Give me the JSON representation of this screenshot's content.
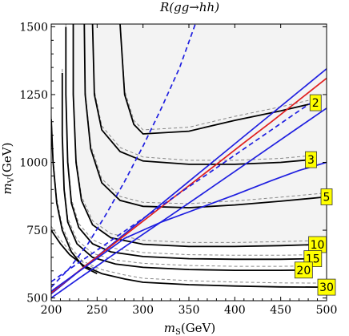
{
  "chart_data": {
    "type": "line",
    "title": "R(gg→hh)",
    "xlabel": "m_S(GeV)",
    "ylabel": "m_V(GeV)",
    "xlim": [
      200,
      500
    ],
    "ylim": [
      490,
      1510
    ],
    "xticks": [
      "200",
      "250",
      "300",
      "350",
      "400",
      "450",
      "500"
    ],
    "yticks": [
      "500",
      "750",
      "1000",
      "1250",
      "1500"
    ],
    "grid": false,
    "colors": {
      "contour": "#000000",
      "contour_dashed": "#888888",
      "blue": "#1f1fe0",
      "red": "#e01f1f",
      "label_bg": "#ffff00",
      "shade_light": "#f3f3f3",
      "shade_mid": "#ebebeb"
    },
    "contours": [
      {
        "label": "2",
        "points": [
          [
            275,
            1510
          ],
          [
            280,
            1250
          ],
          [
            290,
            1140
          ],
          [
            300,
            1105
          ],
          [
            350,
            1115
          ],
          [
            400,
            1155
          ],
          [
            450,
            1190
          ],
          [
            488,
            1220
          ]
        ]
      },
      {
        "label": "3",
        "points": [
          [
            245,
            1510
          ],
          [
            247,
            1250
          ],
          [
            255,
            1120
          ],
          [
            275,
            1040
          ],
          [
            300,
            1005
          ],
          [
            350,
            993
          ],
          [
            400,
            993
          ],
          [
            450,
            1000
          ],
          [
            483,
            1010
          ]
        ]
      },
      {
        "label": "5",
        "points": [
          [
            236,
            1510
          ],
          [
            237,
            1250
          ],
          [
            243,
            1050
          ],
          [
            255,
            925
          ],
          [
            275,
            860
          ],
          [
            300,
            838
          ],
          [
            350,
            833
          ],
          [
            400,
            843
          ],
          [
            450,
            857
          ],
          [
            500,
            873
          ]
        ]
      },
      {
        "label": "10",
        "points": [
          [
            224,
            1510
          ],
          [
            224,
            1250
          ],
          [
            227,
            1000
          ],
          [
            233,
            860
          ],
          [
            245,
            770
          ],
          [
            265,
            722
          ],
          [
            300,
            698
          ],
          [
            350,
            690
          ],
          [
            400,
            690
          ],
          [
            450,
            693
          ],
          [
            490,
            697
          ]
        ]
      },
      {
        "label": "15",
        "points": [
          [
            216,
            1500
          ],
          [
            216,
            1250
          ],
          [
            218,
            1000
          ],
          [
            222,
            850
          ],
          [
            230,
            760
          ],
          [
            245,
            700
          ],
          [
            265,
            670
          ],
          [
            300,
            653
          ],
          [
            350,
            645
          ],
          [
            400,
            643
          ],
          [
            450,
            643
          ],
          [
            485,
            645
          ]
        ]
      },
      {
        "label": "20",
        "points": [
          [
            212,
            1330
          ],
          [
            212,
            1100
          ],
          [
            214,
            900
          ],
          [
            218,
            780
          ],
          [
            228,
            700
          ],
          [
            245,
            650
          ],
          [
            270,
            625
          ],
          [
            300,
            613
          ],
          [
            350,
            605
          ],
          [
            400,
            602
          ],
          [
            450,
            602
          ],
          [
            475,
            603
          ]
        ]
      },
      {
        "label": "30",
        "points": [
          [
            200,
            750
          ],
          [
            210,
            700
          ],
          [
            220,
            660
          ],
          [
            235,
            620
          ],
          [
            255,
            590
          ],
          [
            280,
            570
          ],
          [
            300,
            558
          ],
          [
            350,
            549
          ],
          [
            400,
            544
          ],
          [
            450,
            541
          ],
          [
            500,
            540
          ]
        ]
      },
      {
        "label": "",
        "points": [
          [
            200,
            1160
          ],
          [
            202,
            1000
          ],
          [
            206,
            850
          ],
          [
            212,
            750
          ],
          [
            222,
            670
          ],
          [
            235,
            615
          ],
          [
            250,
            590
          ]
        ]
      }
    ],
    "series": [
      {
        "color": "blue",
        "dash": false,
        "points": [
          [
            200,
            500
          ],
          [
            230,
            572
          ],
          [
            260,
            642
          ],
          [
            290,
            712
          ],
          [
            320,
            781
          ],
          [
            350,
            850
          ],
          [
            380,
            920
          ],
          [
            410,
            990
          ],
          [
            440,
            1060
          ],
          [
            470,
            1130
          ],
          [
            500,
            1200
          ]
        ]
      },
      {
        "color": "blue",
        "dash": false,
        "points": [
          [
            200,
            515
          ],
          [
            230,
            598
          ],
          [
            260,
            681
          ],
          [
            290,
            764
          ],
          [
            320,
            847
          ],
          [
            350,
            930
          ],
          [
            380,
            1013
          ],
          [
            410,
            1096
          ],
          [
            440,
            1179
          ],
          [
            470,
            1262
          ],
          [
            500,
            1345
          ]
        ]
      },
      {
        "color": "red",
        "dash": false,
        "points": [
          [
            200,
            520
          ],
          [
            230,
            599
          ],
          [
            260,
            678
          ],
          [
            290,
            757
          ],
          [
            320,
            836
          ],
          [
            350,
            914
          ],
          [
            380,
            993
          ],
          [
            410,
            1072
          ],
          [
            440,
            1150
          ],
          [
            470,
            1230
          ],
          [
            500,
            1310
          ]
        ]
      },
      {
        "color": "blue",
        "dash": true,
        "points": [
          [
            200,
            560
          ],
          [
            230,
            630
          ],
          [
            260,
            700
          ],
          [
            290,
            770
          ],
          [
            320,
            840
          ],
          [
            350,
            910
          ],
          [
            380,
            980
          ],
          [
            410,
            1050
          ],
          [
            440,
            1120
          ],
          [
            470,
            1190
          ],
          [
            490,
            1235
          ]
        ]
      },
      {
        "color": "blue",
        "dash": false,
        "points": [
          [
            200,
            525
          ],
          [
            240,
            622
          ],
          [
            280,
            720
          ],
          [
            320,
            780
          ],
          [
            360,
            830
          ],
          [
            400,
            880
          ],
          [
            440,
            933
          ],
          [
            470,
            970
          ],
          [
            500,
            1000
          ]
        ]
      },
      {
        "color": "blue",
        "dash": true,
        "points": [
          [
            200,
            540
          ],
          [
            220,
            610
          ],
          [
            240,
            700
          ],
          [
            260,
            810
          ],
          [
            280,
            930
          ],
          [
            300,
            1060
          ],
          [
            320,
            1200
          ],
          [
            340,
            1350
          ],
          [
            357,
            1510
          ]
        ]
      }
    ]
  }
}
